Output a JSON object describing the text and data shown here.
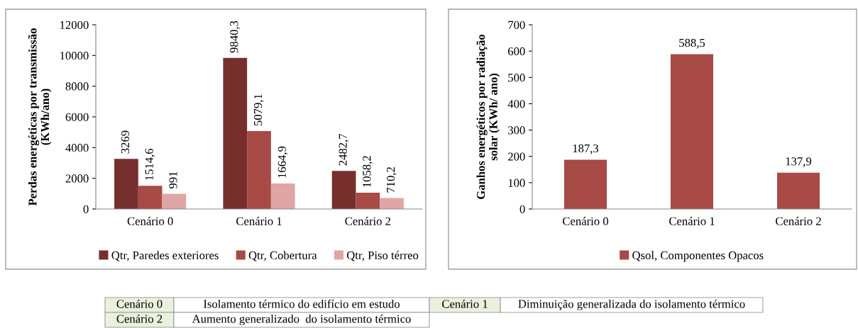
{
  "chart_data": [
    {
      "type": "bar",
      "ylabel": "Perdas energéticas por transmissão\n(KWh/ano)",
      "categories": [
        "Cenário 0",
        "Cenário 1",
        "Cenário 2"
      ],
      "series": [
        {
          "name": "Qtr, Paredes exteriores",
          "color": "#772f2e",
          "values": [
            3269,
            9840.3,
            2482.7
          ],
          "value_labels": [
            "3269",
            "9840,3",
            "2482,7"
          ]
        },
        {
          "name": "Qtr, Cobertura",
          "color": "#a84a45",
          "values": [
            1514.6,
            5079.1,
            1058.2
          ],
          "value_labels": [
            "1514,6",
            "5079,1",
            "1058,2"
          ]
        },
        {
          "name": "Qtr, Piso térreo",
          "color": "#e0a6a5",
          "values": [
            991,
            1664.9,
            710.2
          ],
          "value_labels": [
            "991",
            "1664,9",
            "710,2"
          ]
        }
      ],
      "ylim": [
        0,
        12000
      ],
      "yticks": [
        0,
        2000,
        4000,
        6000,
        8000,
        10000,
        12000
      ],
      "grid": false,
      "legend": "bottom",
      "annotations": [
        "Cenário 0",
        "Isolamento térmico do edifício em estudo",
        "Cenário 1",
        "Diminuição generalizada do isolamento térmico",
        "Cenário 2",
        "Aumento generalizado  do isolamento térmico"
      ]
    },
    {
      "type": "bar",
      "ylabel": "Ganhos energéticos por radiação\nsolar (KWh/ ano)",
      "categories": [
        "Cenário 0",
        "Cenário 1",
        "Cenário 2"
      ],
      "series": [
        {
          "name": "Qsol, Componentes Opacos",
          "color": "#a84a45",
          "values": [
            187.3,
            588.5,
            137.9
          ],
          "value_labels": [
            "187,3",
            "588,5",
            "137,9"
          ]
        }
      ],
      "ylim": [
        0,
        700
      ],
      "yticks": [
        0,
        100,
        200,
        300,
        400,
        500,
        600,
        700
      ],
      "grid": false,
      "legend": "bottom"
    }
  ]
}
